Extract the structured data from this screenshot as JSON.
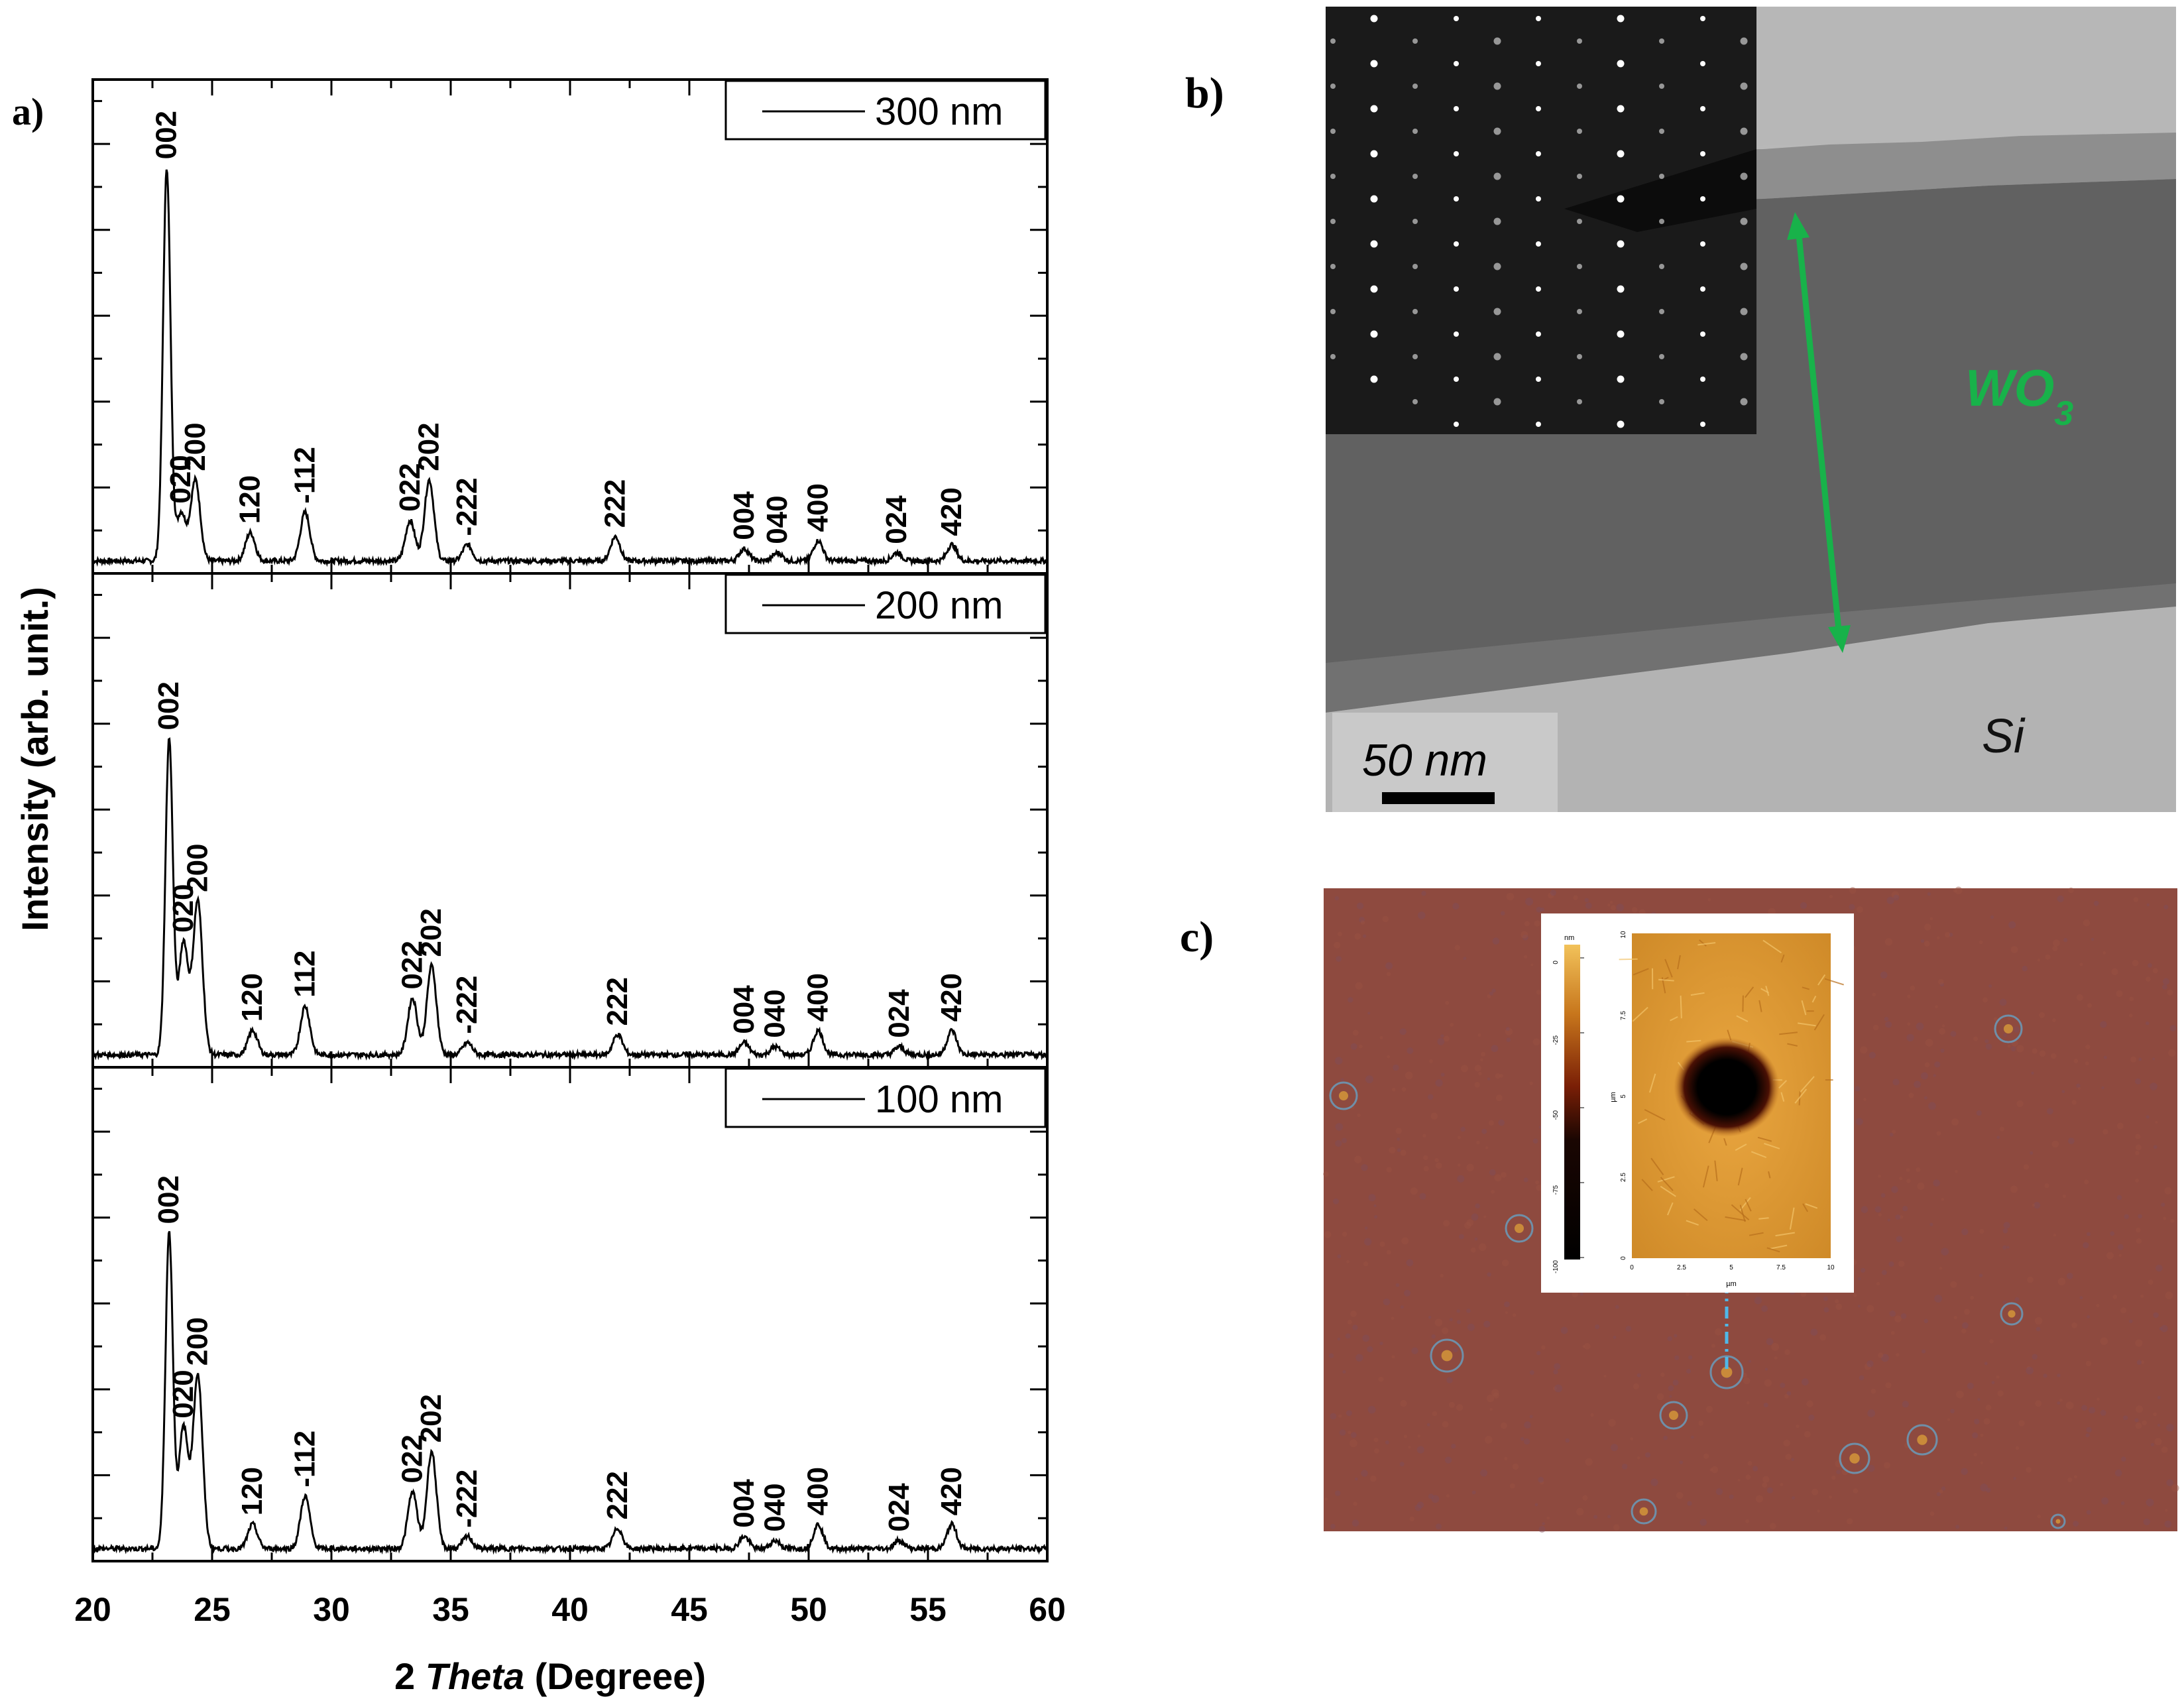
{
  "panel_labels": {
    "a": "a)",
    "b": "b)",
    "c": "c)"
  },
  "panel_a": {
    "ylabel": "Intensity (arb. unit.)",
    "xlabel_prefix": "2",
    "xlabel_italic": "Theta",
    "xlabel_suffix": "(Degreee)",
    "xticks": [
      "20",
      "25",
      "30",
      "35",
      "40",
      "45",
      "50",
      "55",
      "60"
    ]
  },
  "panel_b": {
    "layer_label": "WO",
    "layer_subscript": "3",
    "substrate_label": "Si",
    "scale_label": "50 nm",
    "colors": {
      "arrow": "#18b24a",
      "label": "#18b24a"
    }
  },
  "panel_c": {
    "inset_unit": "nm",
    "inset_colorbar_ticks": [
      "0",
      "-25",
      "-50",
      "-75",
      "-100"
    ],
    "inset_axis_ticks": [
      "0",
      "2.5",
      "5",
      "7.5",
      "10"
    ],
    "inset_x_unit": "µm",
    "inset_y_unit": "µm"
  },
  "chart_data": [
    {
      "type": "line",
      "legend": "300 nm",
      "legend_position": "top-right",
      "xlim": [
        20,
        60
      ],
      "xticks": [
        20,
        25,
        30,
        35,
        40,
        45,
        50,
        55,
        60
      ],
      "peaks": [
        {
          "label": "002",
          "x": 23.1,
          "h": 0.97
        },
        {
          "label": "020",
          "x": 23.7,
          "h": 0.12
        },
        {
          "label": "200",
          "x": 24.3,
          "h": 0.2
        },
        {
          "label": "120",
          "x": 26.6,
          "h": 0.07
        },
        {
          "label": "-112",
          "x": 28.9,
          "h": 0.12
        },
        {
          "label": "022",
          "x": 33.3,
          "h": 0.1
        },
        {
          "label": "202",
          "x": 34.1,
          "h": 0.2
        },
        {
          "label": "-222",
          "x": 35.7,
          "h": 0.04
        },
        {
          "label": "222",
          "x": 41.9,
          "h": 0.06
        },
        {
          "label": "004",
          "x": 47.3,
          "h": 0.03
        },
        {
          "label": "040",
          "x": 48.7,
          "h": 0.02
        },
        {
          "label": "400",
          "x": 50.4,
          "h": 0.05
        },
        {
          "label": "024",
          "x": 53.7,
          "h": 0.02
        },
        {
          "label": "420",
          "x": 56.0,
          "h": 0.04
        }
      ]
    },
    {
      "type": "line",
      "legend": "200 nm",
      "legend_position": "top-right",
      "xlim": [
        20,
        60
      ],
      "xticks": [
        20,
        25,
        30,
        35,
        40,
        45,
        50,
        55,
        60
      ],
      "peaks": [
        {
          "label": "002",
          "x": 23.2,
          "h": 0.78
        },
        {
          "label": "020",
          "x": 23.8,
          "h": 0.28
        },
        {
          "label": "200",
          "x": 24.4,
          "h": 0.38
        },
        {
          "label": "120",
          "x": 26.7,
          "h": 0.06
        },
        {
          "label": "112",
          "x": 28.9,
          "h": 0.12
        },
        {
          "label": "022",
          "x": 33.4,
          "h": 0.14
        },
        {
          "label": "202",
          "x": 34.2,
          "h": 0.22
        },
        {
          "label": "-222",
          "x": 35.7,
          "h": 0.03
        },
        {
          "label": "222",
          "x": 42.0,
          "h": 0.05
        },
        {
          "label": "004",
          "x": 47.3,
          "h": 0.03
        },
        {
          "label": "040",
          "x": 48.6,
          "h": 0.02
        },
        {
          "label": "400",
          "x": 50.4,
          "h": 0.06
        },
        {
          "label": "024",
          "x": 53.8,
          "h": 0.02
        },
        {
          "label": "420",
          "x": 56.0,
          "h": 0.06
        }
      ]
    },
    {
      "type": "line",
      "legend": "100 nm",
      "legend_position": "top-right",
      "xlim": [
        20,
        60
      ],
      "xticks": [
        20,
        25,
        30,
        35,
        40,
        45,
        50,
        55,
        60
      ],
      "peaks": [
        {
          "label": "002",
          "x": 23.2,
          "h": 0.78
        },
        {
          "label": "020",
          "x": 23.8,
          "h": 0.3
        },
        {
          "label": "200",
          "x": 24.4,
          "h": 0.43
        },
        {
          "label": "120",
          "x": 26.7,
          "h": 0.06
        },
        {
          "label": "-112",
          "x": 28.9,
          "h": 0.13
        },
        {
          "label": "022",
          "x": 33.4,
          "h": 0.14
        },
        {
          "label": "202",
          "x": 34.2,
          "h": 0.24
        },
        {
          "label": "-222",
          "x": 35.7,
          "h": 0.03
        },
        {
          "label": "222",
          "x": 42.0,
          "h": 0.05
        },
        {
          "label": "004",
          "x": 47.3,
          "h": 0.03
        },
        {
          "label": "040",
          "x": 48.6,
          "h": 0.02
        },
        {
          "label": "400",
          "x": 50.4,
          "h": 0.06
        },
        {
          "label": "024",
          "x": 53.8,
          "h": 0.02
        },
        {
          "label": "420",
          "x": 56.0,
          "h": 0.06
        }
      ]
    }
  ]
}
